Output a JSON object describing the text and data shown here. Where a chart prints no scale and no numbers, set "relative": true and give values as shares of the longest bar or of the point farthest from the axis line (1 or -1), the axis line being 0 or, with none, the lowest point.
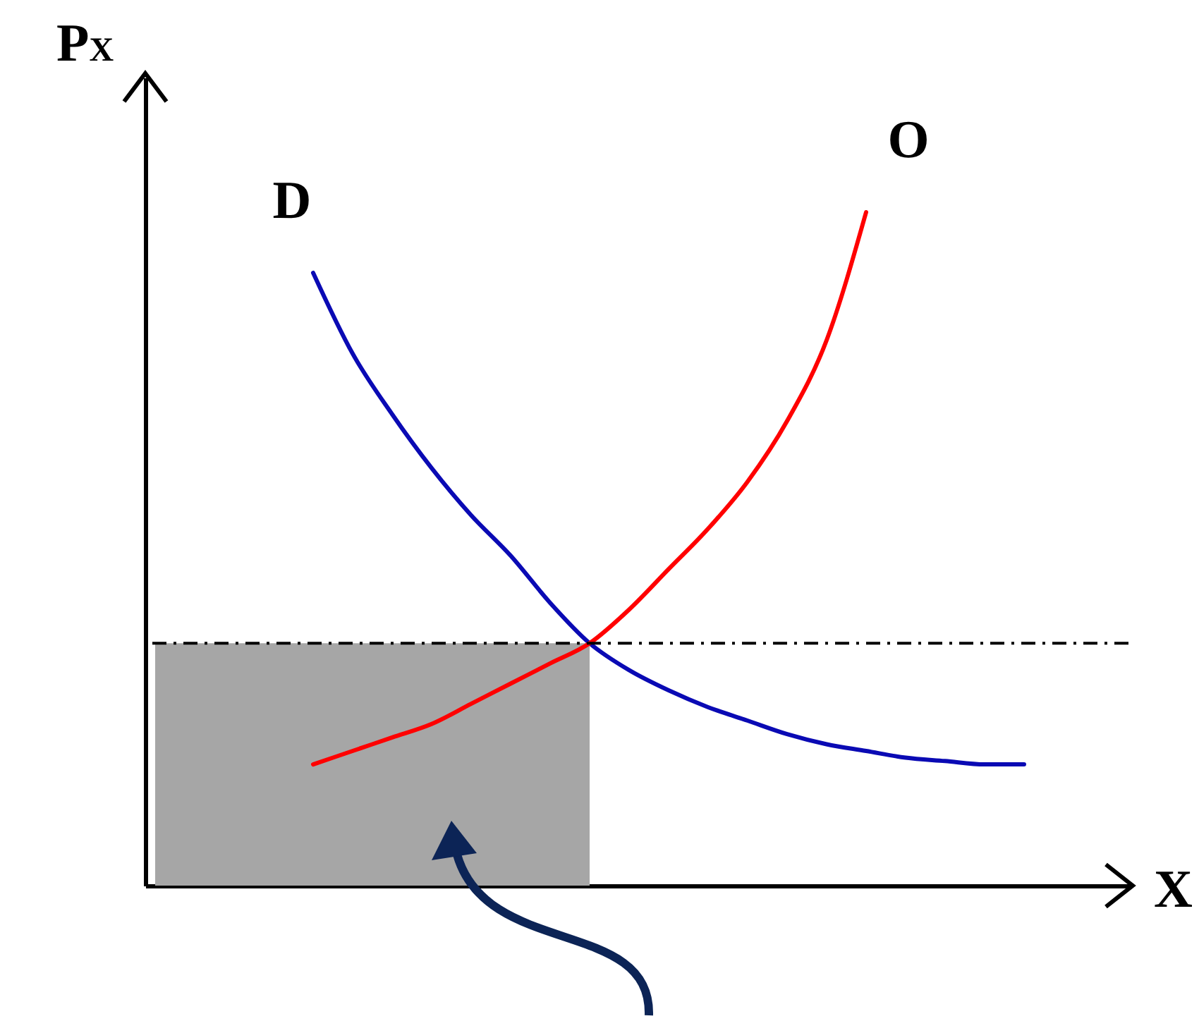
{
  "chart_data": {
    "type": "line",
    "xlabel": "X",
    "ylabel": "P$_{X}$",
    "relative": true,
    "categories": [
      null,
      null,
      null,
      null,
      null,
      null,
      null,
      null,
      null,
      null,
      null,
      null,
      null,
      null,
      null,
      null,
      null,
      null,
      null,
      null,
      null,
      null,
      null
    ],
    "series": [
      {
        "type": "area",
        "color": "#a6a6a6",
        "values": [
          0.36,
          0.36,
          0.36,
          0.36,
          0.36,
          0.36,
          0.36,
          0.36,
          0.36,
          0.36,
          0.36,
          0.36,
          null,
          null,
          null,
          null,
          null,
          null,
          null,
          null,
          null,
          null,
          null
        ]
      },
      {
        "name": "D",
        "color": "#0a0ab4",
        "values": [
          null,
          null,
          null,
          null,
          0.91,
          0.79,
          0.7,
          0.62,
          0.55,
          0.49,
          0.42,
          0.36,
          0.32,
          0.29,
          0.265,
          0.245,
          0.225,
          0.21,
          0.2,
          0.19,
          0.185,
          0.18,
          0.18
        ]
      },
      {
        "name": "O",
        "color": "#ff0000",
        "values": [
          null,
          null,
          null,
          null,
          0.18,
          0.2,
          0.22,
          0.24,
          0.27,
          0.3,
          0.33,
          0.36,
          0.41,
          0.47,
          0.53,
          0.6,
          0.69,
          0.81,
          1.0,
          null,
          null,
          null,
          null
        ]
      }
    ],
    "ref_lines": [
      {
        "axis": "y",
        "value": 0.36,
        "line_style": "dashed",
        "color": "#000000"
      }
    ]
  }
}
